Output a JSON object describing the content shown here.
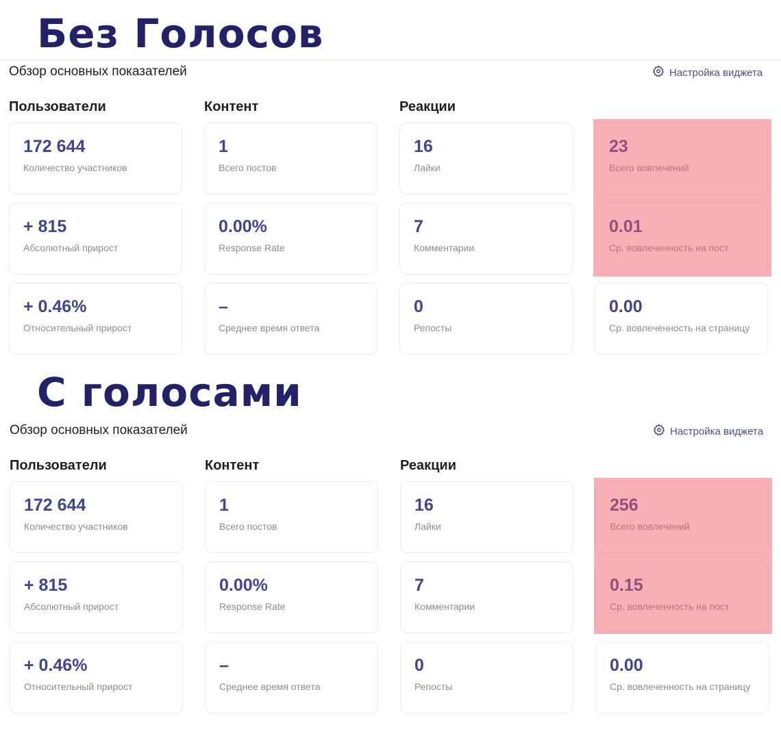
{
  "sections": [
    {
      "heading": "Без Голосов",
      "widget_title": "Обзор основных показателей",
      "settings_label": "Настройка виджета",
      "columns": [
        "Пользователи",
        "Контент",
        "Реакции"
      ],
      "cards": [
        {
          "value": "172 644",
          "label": "Количество участников"
        },
        {
          "value": "1",
          "label": "Всего постов"
        },
        {
          "value": "16",
          "label": "Лайки"
        },
        {
          "value": "23",
          "label": "Всего вовлечений"
        },
        {
          "value": "+ 815",
          "label": "Абсолютный прирост"
        },
        {
          "value": "0.00%",
          "label": "Response Rate"
        },
        {
          "value": "7",
          "label": "Комментарии"
        },
        {
          "value": "0.01",
          "label": "Ср. вовлеченность на пост"
        },
        {
          "value": "+ 0.46%",
          "label": "Относительный прирост"
        },
        {
          "value": "–",
          "label": "Среднее время ответа"
        },
        {
          "value": "0",
          "label": "Репосты"
        },
        {
          "value": "0.00",
          "label": "Ср. вовлеченность на страницу"
        }
      ],
      "highlight_color": "#f5a3a8"
    },
    {
      "heading": "С голосами",
      "widget_title": "Обзор основных показателей",
      "settings_label": "Настройка виджета",
      "columns": [
        "Пользователи",
        "Контент",
        "Реакции"
      ],
      "cards": [
        {
          "value": "172 644",
          "label": "Количество участников"
        },
        {
          "value": "1",
          "label": "Всего постов"
        },
        {
          "value": "16",
          "label": "Лайки"
        },
        {
          "value": "256",
          "label": "Всего вовлечений"
        },
        {
          "value": "+ 815",
          "label": "Абсолютный прирост"
        },
        {
          "value": "0.00%",
          "label": "Response Rate"
        },
        {
          "value": "7",
          "label": "Комментарии"
        },
        {
          "value": "0.15",
          "label": "Ср. вовлеченность на пост"
        },
        {
          "value": "+ 0.46%",
          "label": "Относительный прирост"
        },
        {
          "value": "–",
          "label": "Среднее время ответа"
        },
        {
          "value": "0",
          "label": "Репосты"
        },
        {
          "value": "0.00",
          "label": "Ср. вовлеченность на страницу"
        }
      ],
      "highlight_color": "#f5a3a8"
    }
  ],
  "colors": {
    "heading": "#21226a",
    "metric_value": "#3d4696",
    "metric_label": "#8a8d96",
    "settings_link": "#4a4f8c"
  },
  "icons": {
    "settings": "gear-icon"
  }
}
